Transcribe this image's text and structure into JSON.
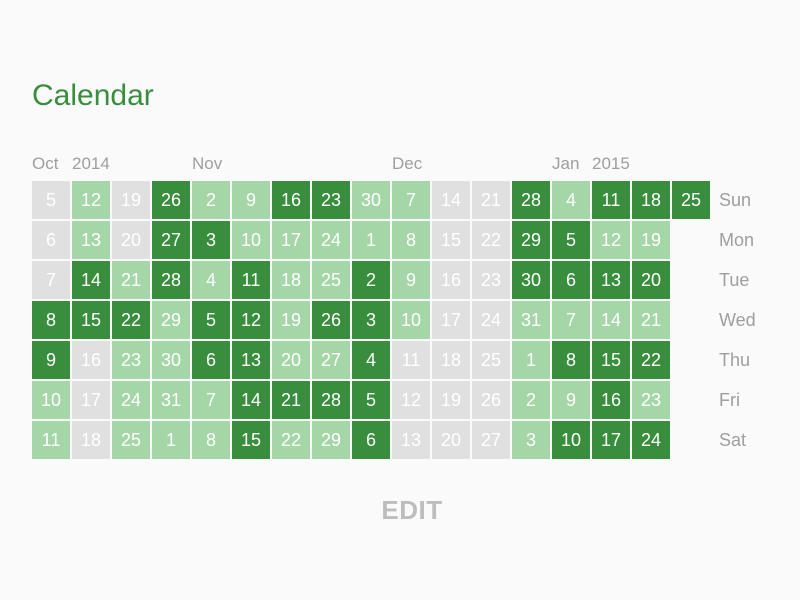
{
  "title": "Calendar",
  "month_labels": [
    {
      "text": "Oct",
      "week": 0
    },
    {
      "text": "2014",
      "week": 1
    },
    {
      "text": "Nov",
      "week": 4
    },
    {
      "text": "Dec",
      "week": 9
    },
    {
      "text": "Jan",
      "week": 13
    },
    {
      "text": "2015",
      "week": 14
    }
  ],
  "day_labels": [
    "Sun",
    "Mon",
    "Tue",
    "Wed",
    "Thu",
    "Fri",
    "Sat"
  ],
  "level_colors": {
    "0": "#e0e0e0",
    "1": "#a5d6a7",
    "2": "#388e3c"
  },
  "weeks": [
    [
      {
        "d": "5",
        "l": 0
      },
      {
        "d": "6",
        "l": 0
      },
      {
        "d": "7",
        "l": 0
      },
      {
        "d": "8",
        "l": 2
      },
      {
        "d": "9",
        "l": 2
      },
      {
        "d": "10",
        "l": 1
      },
      {
        "d": "11",
        "l": 1
      }
    ],
    [
      {
        "d": "12",
        "l": 1
      },
      {
        "d": "13",
        "l": 1
      },
      {
        "d": "14",
        "l": 2
      },
      {
        "d": "15",
        "l": 2
      },
      {
        "d": "16",
        "l": 0
      },
      {
        "d": "17",
        "l": 0
      },
      {
        "d": "18",
        "l": 0
      }
    ],
    [
      {
        "d": "19",
        "l": 0
      },
      {
        "d": "20",
        "l": 0
      },
      {
        "d": "21",
        "l": 1
      },
      {
        "d": "22",
        "l": 2
      },
      {
        "d": "23",
        "l": 1
      },
      {
        "d": "24",
        "l": 1
      },
      {
        "d": "25",
        "l": 1
      }
    ],
    [
      {
        "d": "26",
        "l": 2
      },
      {
        "d": "27",
        "l": 2
      },
      {
        "d": "28",
        "l": 2
      },
      {
        "d": "29",
        "l": 1
      },
      {
        "d": "30",
        "l": 1
      },
      {
        "d": "31",
        "l": 1
      },
      {
        "d": "1",
        "l": 1
      }
    ],
    [
      {
        "d": "2",
        "l": 1
      },
      {
        "d": "3",
        "l": 2
      },
      {
        "d": "4",
        "l": 1
      },
      {
        "d": "5",
        "l": 2
      },
      {
        "d": "6",
        "l": 2
      },
      {
        "d": "7",
        "l": 1
      },
      {
        "d": "8",
        "l": 1
      }
    ],
    [
      {
        "d": "9",
        "l": 1
      },
      {
        "d": "10",
        "l": 1
      },
      {
        "d": "11",
        "l": 2
      },
      {
        "d": "12",
        "l": 2
      },
      {
        "d": "13",
        "l": 2
      },
      {
        "d": "14",
        "l": 2
      },
      {
        "d": "15",
        "l": 2
      }
    ],
    [
      {
        "d": "16",
        "l": 2
      },
      {
        "d": "17",
        "l": 1
      },
      {
        "d": "18",
        "l": 1
      },
      {
        "d": "19",
        "l": 1
      },
      {
        "d": "20",
        "l": 1
      },
      {
        "d": "21",
        "l": 2
      },
      {
        "d": "22",
        "l": 1
      }
    ],
    [
      {
        "d": "23",
        "l": 2
      },
      {
        "d": "24",
        "l": 1
      },
      {
        "d": "25",
        "l": 1
      },
      {
        "d": "26",
        "l": 2
      },
      {
        "d": "27",
        "l": 1
      },
      {
        "d": "28",
        "l": 2
      },
      {
        "d": "29",
        "l": 1
      }
    ],
    [
      {
        "d": "30",
        "l": 1
      },
      {
        "d": "1",
        "l": 1
      },
      {
        "d": "2",
        "l": 2
      },
      {
        "d": "3",
        "l": 2
      },
      {
        "d": "4",
        "l": 2
      },
      {
        "d": "5",
        "l": 2
      },
      {
        "d": "6",
        "l": 2
      }
    ],
    [
      {
        "d": "7",
        "l": 1
      },
      {
        "d": "8",
        "l": 1
      },
      {
        "d": "9",
        "l": 1
      },
      {
        "d": "10",
        "l": 1
      },
      {
        "d": "11",
        "l": 0
      },
      {
        "d": "12",
        "l": 0
      },
      {
        "d": "13",
        "l": 0
      }
    ],
    [
      {
        "d": "14",
        "l": 0
      },
      {
        "d": "15",
        "l": 0
      },
      {
        "d": "16",
        "l": 0
      },
      {
        "d": "17",
        "l": 0
      },
      {
        "d": "18",
        "l": 0
      },
      {
        "d": "19",
        "l": 0
      },
      {
        "d": "20",
        "l": 0
      }
    ],
    [
      {
        "d": "21",
        "l": 0
      },
      {
        "d": "22",
        "l": 0
      },
      {
        "d": "23",
        "l": 0
      },
      {
        "d": "24",
        "l": 0
      },
      {
        "d": "25",
        "l": 0
      },
      {
        "d": "26",
        "l": 0
      },
      {
        "d": "27",
        "l": 0
      }
    ],
    [
      {
        "d": "28",
        "l": 2
      },
      {
        "d": "29",
        "l": 2
      },
      {
        "d": "30",
        "l": 2
      },
      {
        "d": "31",
        "l": 1
      },
      {
        "d": "1",
        "l": 1
      },
      {
        "d": "2",
        "l": 1
      },
      {
        "d": "3",
        "l": 1
      }
    ],
    [
      {
        "d": "4",
        "l": 1
      },
      {
        "d": "5",
        "l": 2
      },
      {
        "d": "6",
        "l": 2
      },
      {
        "d": "7",
        "l": 1
      },
      {
        "d": "8",
        "l": 2
      },
      {
        "d": "9",
        "l": 1
      },
      {
        "d": "10",
        "l": 2
      }
    ],
    [
      {
        "d": "11",
        "l": 2
      },
      {
        "d": "12",
        "l": 1
      },
      {
        "d": "13",
        "l": 2
      },
      {
        "d": "14",
        "l": 1
      },
      {
        "d": "15",
        "l": 2
      },
      {
        "d": "16",
        "l": 2
      },
      {
        "d": "17",
        "l": 2
      }
    ],
    [
      {
        "d": "18",
        "l": 2
      },
      {
        "d": "19",
        "l": 1
      },
      {
        "d": "20",
        "l": 2
      },
      {
        "d": "21",
        "l": 1
      },
      {
        "d": "22",
        "l": 2
      },
      {
        "d": "23",
        "l": 1
      },
      {
        "d": "24",
        "l": 2
      }
    ],
    [
      {
        "d": "25",
        "l": 2
      }
    ]
  ],
  "edit_label": "EDIT"
}
